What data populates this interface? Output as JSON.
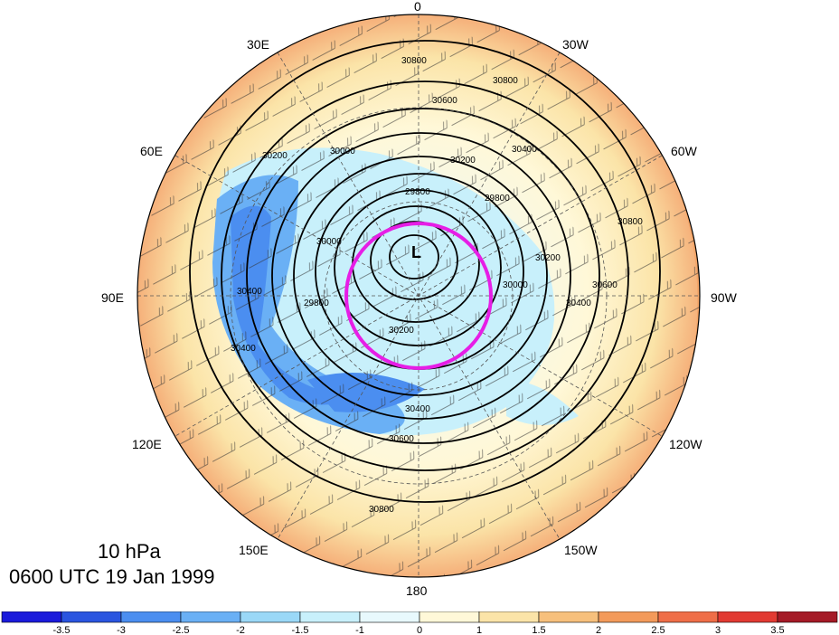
{
  "projection": "north-polar-stereographic",
  "title": {
    "level": "10 hPa",
    "time": "0600 UTC 19 Jan 1999"
  },
  "longitude_labels": {
    "lon_0": "0",
    "lon_30w": "30W",
    "lon_60w": "60W",
    "lon_90w": "90W",
    "lon_120w": "120W",
    "lon_150w": "150W",
    "lon_180": "180",
    "lon_150e": "150E",
    "lon_120e": "120E",
    "lon_90e": "90E",
    "lon_60e": "60E",
    "lon_30e": "30E"
  },
  "pressure_center": {
    "label": "L"
  },
  "contour_labels": [
    "30800",
    "30800",
    "30600",
    "30400",
    "30200",
    "30000",
    "29800",
    "29800",
    "30000",
    "30200",
    "30400",
    "30600",
    "30800",
    "30400",
    "30400",
    "30200",
    "30000",
    "29800",
    "30200",
    "30400",
    "30600",
    "30800"
  ],
  "highlight": {
    "color": "#e61ee6"
  },
  "colorbar": {
    "colors": [
      "#1a1adb",
      "#2a55e0",
      "#4b8ef0",
      "#6ab0f5",
      "#9ad8f7",
      "#c8f0fb",
      "#e8f9fd",
      "#fff8d8",
      "#fbe4a8",
      "#f7c07c",
      "#f39a5a",
      "#ef6e48",
      "#e23a32",
      "#a51a26"
    ],
    "ticks": [
      "-3.5",
      "-3",
      "-2.5",
      "-2",
      "-1.5",
      "-1",
      "0",
      "1",
      "1.5",
      "2",
      "2.5",
      "3",
      "3.5"
    ]
  }
}
